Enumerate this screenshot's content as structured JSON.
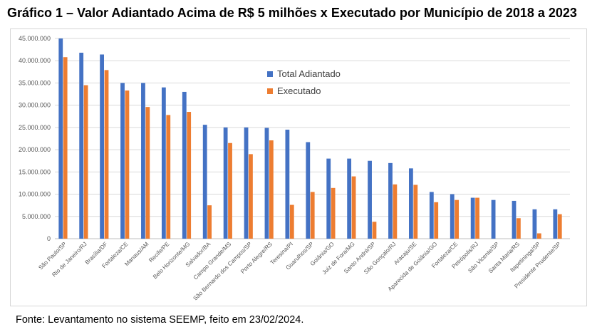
{
  "header": {
    "title": "Gráfico 1 – Valor Adiantado Acima de R$ 5 milhões x Executado por Município de 2018 a 2023"
  },
  "footer": {
    "source": "Fonte: Levantamento no sistema SEEMP, feito em 23/02/2024."
  },
  "chart_data": {
    "type": "bar",
    "title": "Gráfico 1 – Valor Adiantado Acima de R$ 5 milhões x Executado por Município de 2018 a 2023",
    "xlabel": "",
    "ylabel": "",
    "ylim": [
      0,
      45000000
    ],
    "yticks": [
      0,
      5000000,
      10000000,
      15000000,
      20000000,
      25000000,
      30000000,
      35000000,
      40000000,
      45000000
    ],
    "ytick_labels": [
      "0",
      "5.000.000",
      "10.000.000",
      "15.000.000",
      "20.000.000",
      "25.000.000",
      "30.000.000",
      "35.000.000",
      "40.000.000",
      "45.000.000"
    ],
    "grid": true,
    "legend_position": "top-center",
    "categories": [
      "São Paulo/SP",
      "Rio de Janeiro/RJ",
      "Brasília/DF",
      "Fortaleza/CE",
      "Manaus/AM",
      "Recife/PE",
      "Belo Horizonte/MG",
      "Salvador/BA",
      "Campo Grande/MS",
      "São Bernardo dos Campos/SP",
      "Porto Alegre/RS",
      "Teresina/PI",
      "Guarulhos/SP",
      "Goiânia/GO",
      "Juiz de Fora/MG",
      "Santo André/SP",
      "São Gonçalo/RJ",
      "Aracaju/SE",
      "Aparecida de Goiânia/GO",
      "Fortaleza/CE",
      "Petrópolis/RJ",
      "São Vicente/SP",
      "Santa Maria/RS",
      "Itapetininga/SP",
      "Presidente Prudente/SP"
    ],
    "series": [
      {
        "name": "Total Adiantado",
        "color": "#4472c4",
        "values": [
          45000000,
          41800000,
          41400000,
          35000000,
          35000000,
          34000000,
          33000000,
          25600000,
          25000000,
          25000000,
          24900000,
          24500000,
          21700000,
          18000000,
          18000000,
          17500000,
          17000000,
          15800000,
          10500000,
          10000000,
          9200000,
          8700000,
          8500000,
          6600000,
          6600000
        ]
      },
      {
        "name": "Executado",
        "color": "#ed7d31",
        "values": [
          40800000,
          34500000,
          37900000,
          33300000,
          29600000,
          27800000,
          28500000,
          7500000,
          21500000,
          19000000,
          22100000,
          7600000,
          10500000,
          11400000,
          14000000,
          3800000,
          12200000,
          12100000,
          8200000,
          8700000,
          9200000,
          0,
          4600000,
          1200000,
          5500000
        ]
      }
    ]
  }
}
